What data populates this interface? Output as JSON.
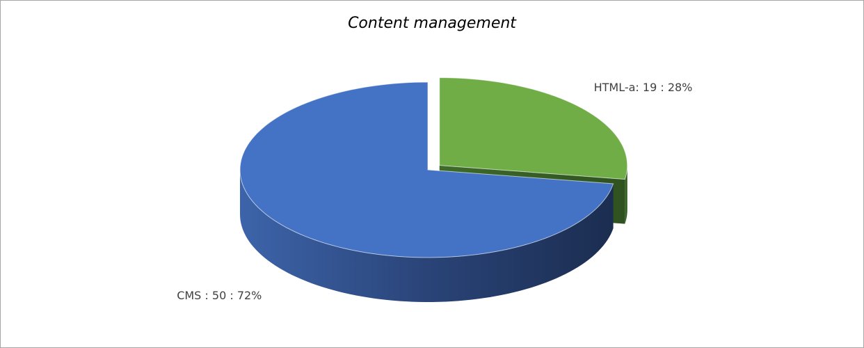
{
  "chart_data": {
    "type": "pie",
    "title": "Content management",
    "values": [
      19,
      50
    ],
    "value_labels": [
      "HTML-a: 19 : 28%",
      "CMS : 50 : 72%"
    ],
    "colors": [
      "#70ad47",
      "#4472c4"
    ],
    "exploded": [
      true,
      false
    ],
    "three_d": true
  }
}
